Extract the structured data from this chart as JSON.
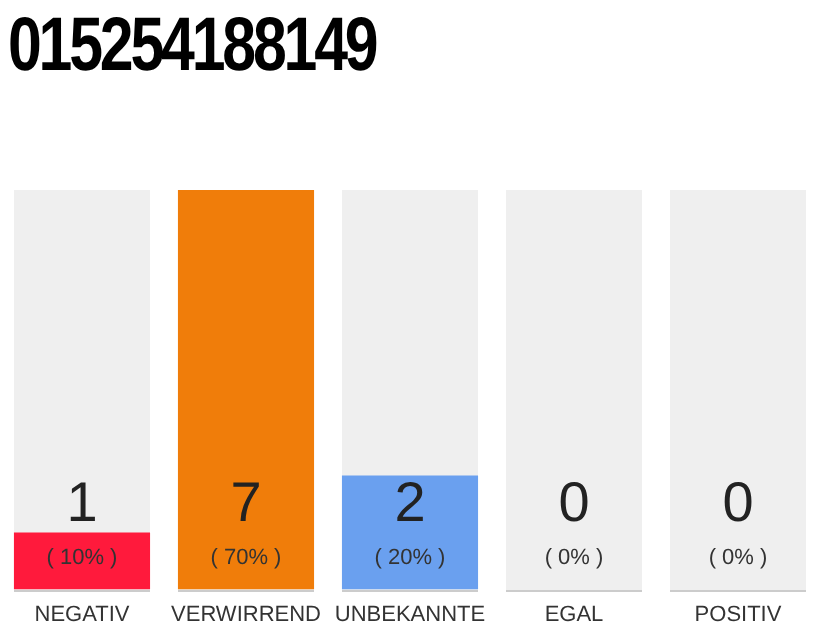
{
  "chart_data": {
    "type": "bar",
    "title": "015254188149",
    "categories": [
      "NEGATIV",
      "VERWIRREND",
      "UNBEKANNTE",
      "EGAL",
      "POSITIV"
    ],
    "values": [
      10,
      70,
      20,
      0,
      0
    ],
    "colors": [
      "#ff1a3c",
      "#f07d0a",
      "#6aa0ef",
      "#9e9e9e",
      "#9e9e9e"
    ],
    "value_labels": [
      "( 10% )",
      "( 70% )",
      "( 20% )",
      "( 0% )",
      "( 0% )"
    ],
    "annotations": [
      "1",
      "7",
      "2",
      "0",
      "0"
    ],
    "tick_labels": "x",
    "grid": false,
    "legend": false
  }
}
